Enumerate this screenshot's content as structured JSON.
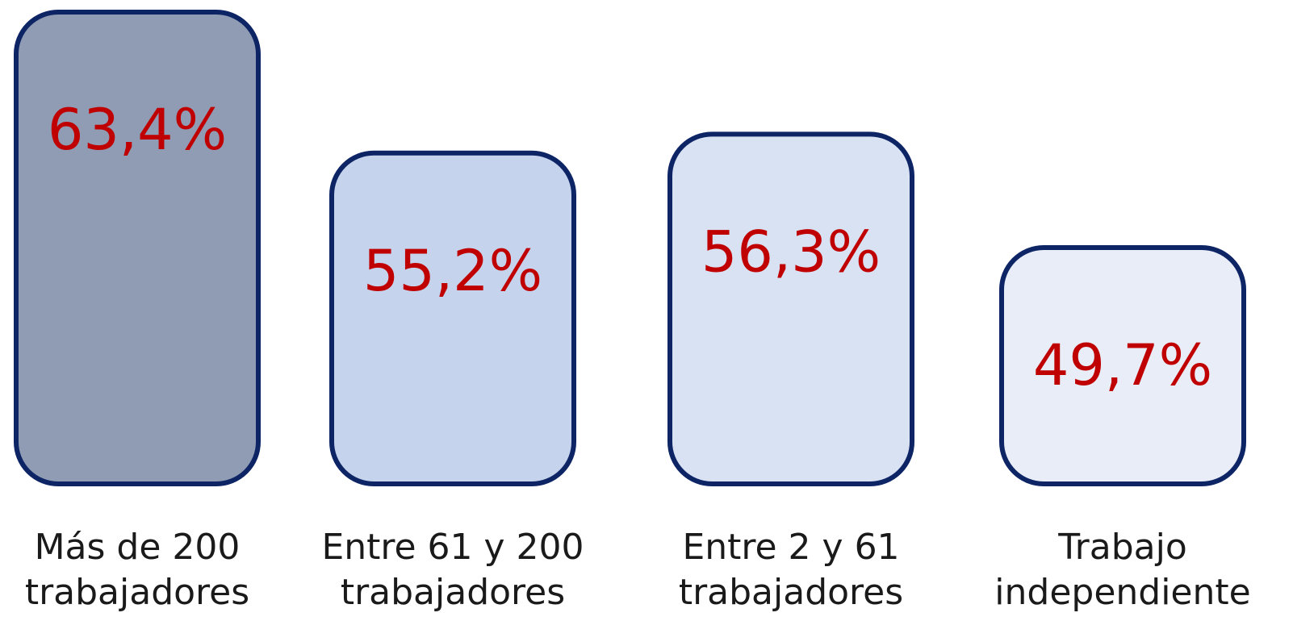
{
  "chart_data": {
    "type": "bar",
    "categories": [
      [
        "Más de 200",
        "trabajadores"
      ],
      [
        "Entre 61 y 200",
        "trabajadores"
      ],
      [
        "Entre 2 y 61",
        "trabajadores"
      ],
      [
        "Trabajo",
        "independiente"
      ]
    ],
    "values": [
      63.4,
      55.2,
      56.3,
      49.7
    ],
    "value_labels": [
      "63,4%",
      "55,2%",
      "56,3%",
      "49,7%"
    ],
    "unit": "%",
    "grid": false,
    "legend": "none",
    "colors": {
      "bar_fills": [
        "#8f9cb3",
        "#c5d4ec",
        "#d9e2f2",
        "#e8edf7"
      ],
      "bar_stroke": "#0d2565",
      "value_text": "#c00000",
      "label_text": "#1a1a1a"
    }
  }
}
